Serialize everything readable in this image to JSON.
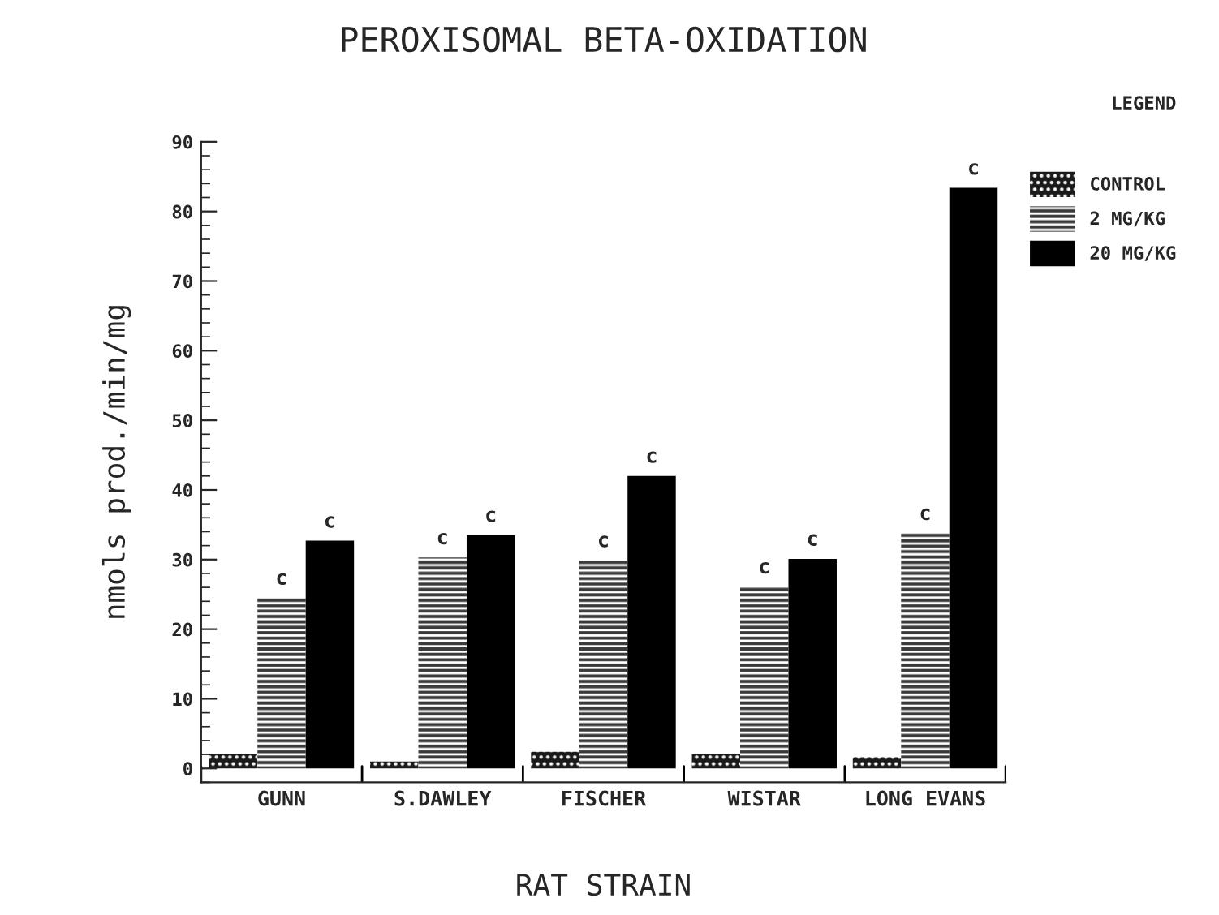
{
  "chart_data": {
    "type": "bar",
    "title": "PEROXISOMAL BETA-OXIDATION",
    "xlabel": "RAT STRAIN",
    "ylabel": "nmols prod./min/mg",
    "legend_title": "LEGEND",
    "categories": [
      "GUNN",
      "S.DAWLEY",
      "FISCHER",
      "WISTAR",
      "LONG EVANS"
    ],
    "series": [
      {
        "name": "CONTROL",
        "color": "#1a1a1a",
        "values": [
          2.0,
          1.0,
          2.4,
          2.0,
          1.6
        ]
      },
      {
        "name": "2 MG/KG",
        "color": "#3a3a3a",
        "values": [
          24.5,
          30.3,
          29.9,
          26.1,
          33.8
        ],
        "value_labels": [
          "c",
          "c",
          "c",
          "c",
          "c"
        ]
      },
      {
        "name": "20 MG/KG",
        "color": "#000000",
        "values": [
          32.7,
          33.5,
          42.0,
          30.1,
          83.4
        ],
        "value_labels": [
          "c",
          "c",
          "c",
          "c",
          "c"
        ]
      }
    ],
    "ylim": [
      -2,
      90
    ],
    "yticks": [
      0,
      10,
      20,
      30,
      40,
      50,
      60,
      70,
      80,
      90
    ],
    "grid": false,
    "legend": "top right"
  }
}
